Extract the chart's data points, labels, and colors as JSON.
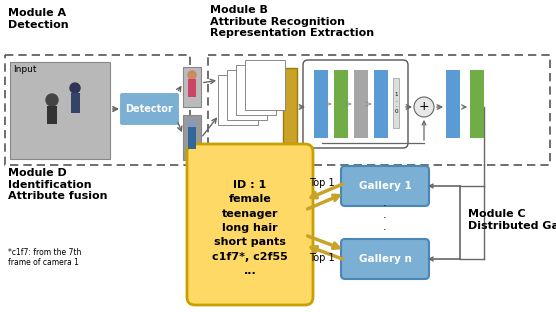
{
  "fig_width": 5.56,
  "fig_height": 3.12,
  "dpi": 100,
  "bg_color": "#ffffff",
  "module_a_label": "Module A\nDetection",
  "module_b_label": "Module B\nAttribute Recognition\nRepresentation Extraction",
  "module_c_label": "Module C\nDistributed Gallery",
  "module_d_label": "Module D\nIdentification\nAttribute fusion",
  "footnote": "*c1f7: from the 7th\nframe of camera 1",
  "blue_col_color": "#5B9BD5",
  "green_col_color": "#70AD47",
  "gray_col_color": "#A6A6A6",
  "gold_color": "#C9A227",
  "gallery_color": "#7BAFD4",
  "detector_color": "#7BAFD4",
  "id_box_color": "#FFD966",
  "id_text": "ID : 1\nfemale\nteenager\nlong hair\nshort pants\nc1f7*, c2f55\n...",
  "arrow_gold": "#C9A227",
  "arrow_dark": "#666666"
}
